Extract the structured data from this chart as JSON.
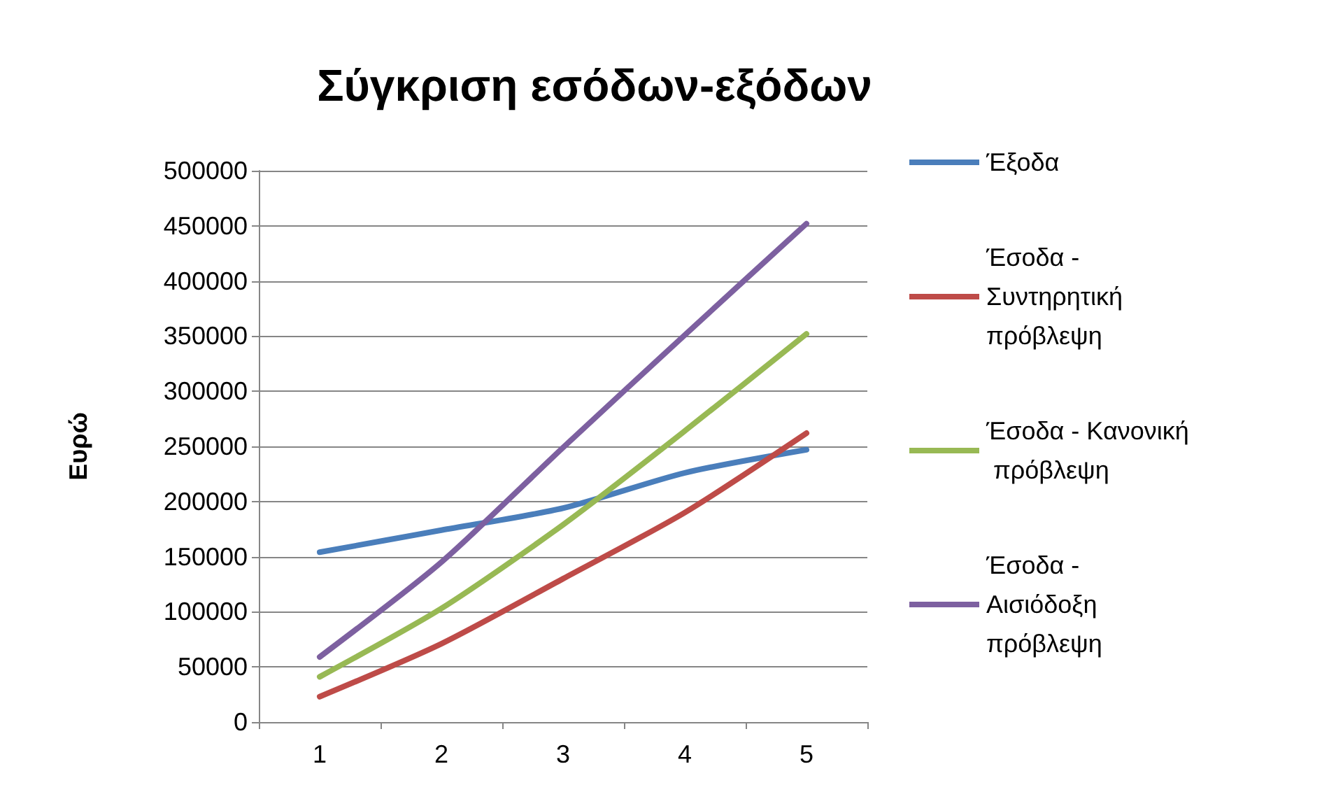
{
  "chart_data": {
    "type": "line",
    "title": "Σύγκριση εσόδων-εξόδων",
    "ylabel": "Ευρώ",
    "categories": [
      "1",
      "2",
      "3",
      "4",
      "5"
    ],
    "series": [
      {
        "name": "Έξοδα",
        "color": "#4a7ebb",
        "values": [
          154000,
          174000,
          194000,
          226000,
          247000
        ]
      },
      {
        "name": "Έσοδα - Συντηρητική πρόβλεψη",
        "color": "#be4b48",
        "values": [
          23000,
          71000,
          130000,
          190000,
          262000
        ]
      },
      {
        "name": "Έσοδα - Κανονική πρόβλεψη",
        "color": "#98b954",
        "values": [
          41000,
          103000,
          179000,
          264000,
          352000
        ]
      },
      {
        "name": "Έσοδα - Αισιόδοξη πρόβλεψη",
        "color": "#7d60a0",
        "values": [
          59000,
          145000,
          249000,
          351000,
          452000
        ]
      }
    ],
    "ylim": [
      0,
      500000
    ],
    "yticks": [
      0,
      50000,
      100000,
      150000,
      200000,
      250000,
      300000,
      350000,
      400000,
      450000,
      500000
    ],
    "grid": "y",
    "legend": "right",
    "marker": "none",
    "line_style": "solid"
  }
}
